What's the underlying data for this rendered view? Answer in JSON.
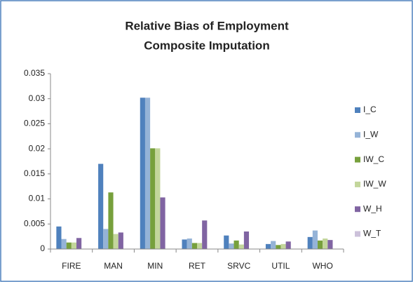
{
  "chart_data": {
    "type": "bar",
    "title": [
      "Relative Bias of Employment",
      "Composite Imputation"
    ],
    "categories": [
      "FIRE",
      "MAN",
      "MIN",
      "RET",
      "SRVC",
      "UTIL",
      "WHO"
    ],
    "series": [
      {
        "name": "I_C",
        "color": "#4f81bd",
        "values": [
          0.0045,
          0.017,
          0.0302,
          0.0019,
          0.0027,
          0.001,
          0.0024
        ]
      },
      {
        "name": "I_W",
        "color": "#95b3d7",
        "values": [
          0.002,
          0.004,
          0.0302,
          0.0021,
          0.0011,
          0.0016,
          0.0037
        ]
      },
      {
        "name": "IW_C",
        "color": "#77a03c",
        "values": [
          0.0013,
          0.0113,
          0.0201,
          0.0012,
          0.0017,
          0.0008,
          0.0017
        ]
      },
      {
        "name": "IW_W",
        "color": "#c3d69b",
        "values": [
          0.0013,
          0.003,
          0.0201,
          0.0012,
          0.0009,
          0.001,
          0.0021
        ]
      },
      {
        "name": "W_H",
        "color": "#8064a2",
        "values": [
          0.0022,
          0.0033,
          0.0103,
          0.0057,
          0.0035,
          0.0015,
          0.0018
        ]
      },
      {
        "name": "W_T",
        "color": "#ccc1da",
        "values": [
          0,
          0,
          0,
          0,
          0,
          0,
          0
        ]
      }
    ],
    "ylim": [
      0,
      0.035
    ],
    "yticks": [
      0,
      0.005,
      0.01,
      0.015,
      0.02,
      0.025,
      0.03,
      0.035
    ],
    "grid": false,
    "legend": "right"
  }
}
